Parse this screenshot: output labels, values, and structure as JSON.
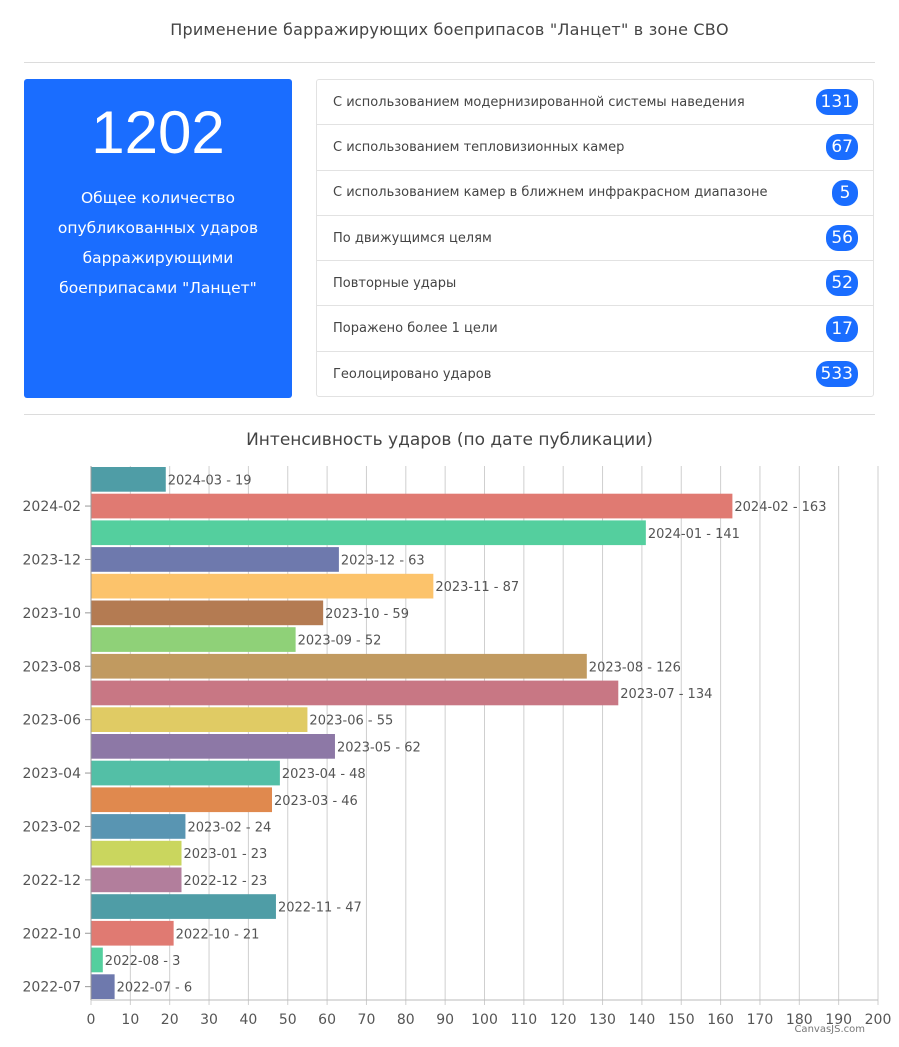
{
  "page": {
    "title": "Применение барражирующих боеприпасов \"Ланцет\" в зоне СВО"
  },
  "total": {
    "value": "1202",
    "label": "Общее количество опубликованных ударов барражирующими боеприпасами \"Ланцет\""
  },
  "stats": [
    {
      "label": "С использованием модернизированной системы наведения",
      "value": "131"
    },
    {
      "label": "С использованием тепловизионных камер",
      "value": "67"
    },
    {
      "label": "С использованием камер в ближнем инфракрасном диапазоне",
      "value": "5"
    },
    {
      "label": "По движущимся целям",
      "value": "56"
    },
    {
      "label": "Повторные удары",
      "value": "52"
    },
    {
      "label": "Поражено более 1 цели",
      "value": "17"
    },
    {
      "label": "Геолоцировано ударов",
      "value": "533"
    }
  ],
  "colors": {
    "accent": "#1a6dff"
  },
  "credit": "CanvasJS.com",
  "chart_data": {
    "type": "bar",
    "orientation": "horizontal",
    "title": "Интенсивность ударов (по дате публикации)",
    "xlabel": "",
    "ylabel": "",
    "xlim": [
      0,
      200
    ],
    "x_ticks": [
      0,
      10,
      20,
      30,
      40,
      50,
      60,
      70,
      80,
      90,
      100,
      110,
      120,
      130,
      140,
      150,
      160,
      170,
      180,
      190,
      200
    ],
    "grid": "vertical",
    "category_ticks": [
      "2024-02",
      "2023-12",
      "2023-10",
      "2023-08",
      "2023-06",
      "2023-04",
      "2023-02",
      "2022-12",
      "2022-10",
      "2022-07"
    ],
    "categories": [
      "2024-03",
      "2024-02",
      "2024-01",
      "2023-12",
      "2023-11",
      "2023-10",
      "2023-09",
      "2023-08",
      "2023-07",
      "2023-06",
      "2023-05",
      "2023-04",
      "2023-03",
      "2023-02",
      "2023-01",
      "2022-12",
      "2022-11",
      "2022-10",
      "2022-08",
      "2022-07"
    ],
    "values": [
      19,
      163,
      141,
      63,
      87,
      59,
      52,
      126,
      134,
      55,
      62,
      48,
      46,
      24,
      23,
      23,
      47,
      21,
      3,
      6
    ],
    "data_labels": [
      "2024-03 - 19",
      "2024-02 - 163",
      "2024-01 - 141",
      "2023-12 - 63",
      "2023-11 - 87",
      "2023-10 - 59",
      "2023-09 - 52",
      "2023-08 - 126",
      "2023-07 - 134",
      "2023-06 - 55",
      "2023-05 - 62",
      "2023-04 - 48",
      "2023-03 - 46",
      "2023-02 - 24",
      "2023-01 - 23",
      "2022-12 - 23",
      "2022-11 - 47",
      "2022-10 - 21",
      "2022-08 - 3",
      "2022-07 - 6"
    ],
    "bar_colors": [
      "#4f9da6",
      "#e07a72",
      "#54cf9e",
      "#6e79ad",
      "#fcc36b",
      "#b47b52",
      "#8fd178",
      "#c19a60",
      "#c87784",
      "#e0cb64",
      "#8d78a6",
      "#53bfa6",
      "#e0894e",
      "#5995b2",
      "#cad65e",
      "#b27e9c",
      "#4f9da6",
      "#e07a72",
      "#54cf9e",
      "#6e79ad"
    ]
  }
}
